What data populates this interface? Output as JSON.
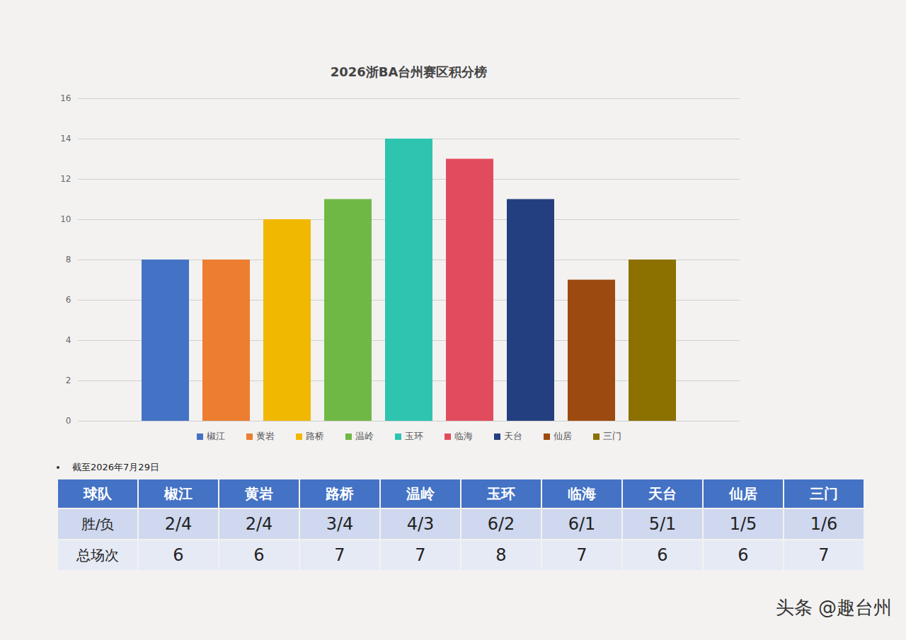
{
  "chart_data": {
    "type": "bar",
    "title": "2026浙BA台州赛区积分榜",
    "categories": [
      "椒江",
      "黄岩",
      "路桥",
      "温岭",
      "玉环",
      "临海",
      "天台",
      "仙居",
      "三门"
    ],
    "values": [
      8,
      8,
      10,
      11,
      14,
      13,
      11,
      7,
      8
    ],
    "colors": [
      "#4472c4",
      "#ed7d31",
      "#f0b800",
      "#70b845",
      "#2ec4b0",
      "#e24b5e",
      "#243f80",
      "#9c4a0f",
      "#8c7000"
    ],
    "ylim": [
      0,
      16
    ],
    "yticks": [
      0,
      2,
      4,
      6,
      8,
      10,
      12,
      14,
      16
    ],
    "grid": true,
    "legend": "bottom",
    "tick_labels": "y"
  },
  "note": "截至2026年7月29日",
  "table": {
    "header": [
      "球队",
      "椒江",
      "黄岩",
      "路桥",
      "温岭",
      "玉环",
      "临海",
      "天台",
      "仙居",
      "三门"
    ],
    "rows": [
      [
        "胜/负",
        "2/4",
        "2/4",
        "3/4",
        "4/3",
        "6/2",
        "6/1",
        "5/1",
        "1/5",
        "1/6"
      ],
      [
        "总场次",
        "6",
        "6",
        "7",
        "7",
        "8",
        "7",
        "6",
        "6",
        "7"
      ]
    ]
  },
  "watermark": "头条 @趣台州"
}
